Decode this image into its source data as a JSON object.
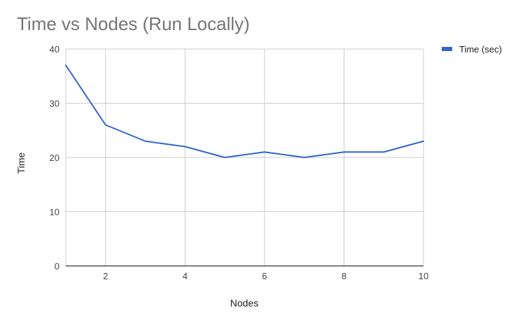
{
  "chart_data": {
    "type": "line",
    "title": "Time vs Nodes (Run Locally)",
    "xlabel": "Nodes",
    "ylabel": "Time",
    "x": [
      1,
      2,
      3,
      4,
      5,
      6,
      7,
      8,
      9,
      10
    ],
    "series": [
      {
        "name": "Time (sec)",
        "color": "#3366cc",
        "values": [
          37,
          26,
          23,
          22,
          20,
          21,
          20,
          21,
          21,
          23
        ]
      }
    ],
    "xlim": [
      1,
      10
    ],
    "ylim": [
      0,
      40
    ],
    "x_ticks": [
      2,
      4,
      6,
      8,
      10
    ],
    "y_ticks": [
      0,
      10,
      20,
      30,
      40
    ],
    "grid": true,
    "legend_position": "right"
  }
}
